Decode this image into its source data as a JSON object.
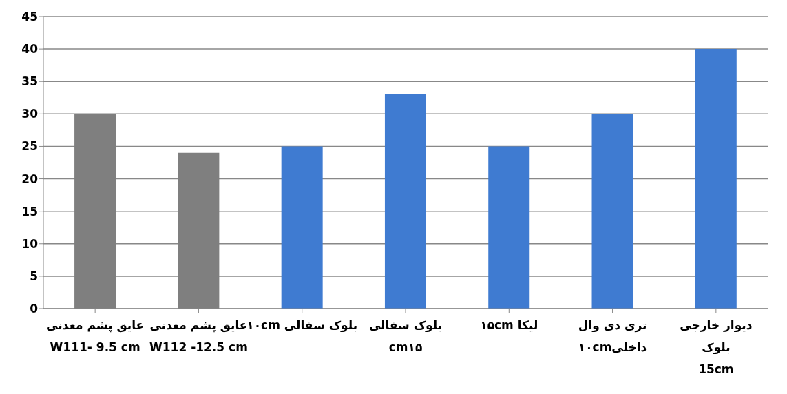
{
  "chart_data": {
    "type": "bar",
    "categories": [
      "عایق پشم معدنی\nW111- 9.5 cm",
      "عایق پشم معدنی\nW112 -12.5 cm",
      "بلوک سفالی ۱۰cm",
      "بلوک سفالی\ncm۱۵",
      "لیکا ۱۵cm",
      "تری دی وال\nداخلی۱۰cm",
      "دیوار خارجی\nبلوک\n15cm"
    ],
    "values": [
      30,
      24,
      25,
      33,
      25,
      30,
      40
    ],
    "colors": [
      "#7f7f7f",
      "#7f7f7f",
      "#3f7bd1",
      "#3f7bd1",
      "#3f7bd1",
      "#3f7bd1",
      "#3f7bd1"
    ],
    "ylim": [
      0,
      45
    ],
    "yticks": [
      0,
      5,
      10,
      15,
      20,
      25,
      30,
      35,
      40,
      45
    ],
    "grid": "y"
  }
}
